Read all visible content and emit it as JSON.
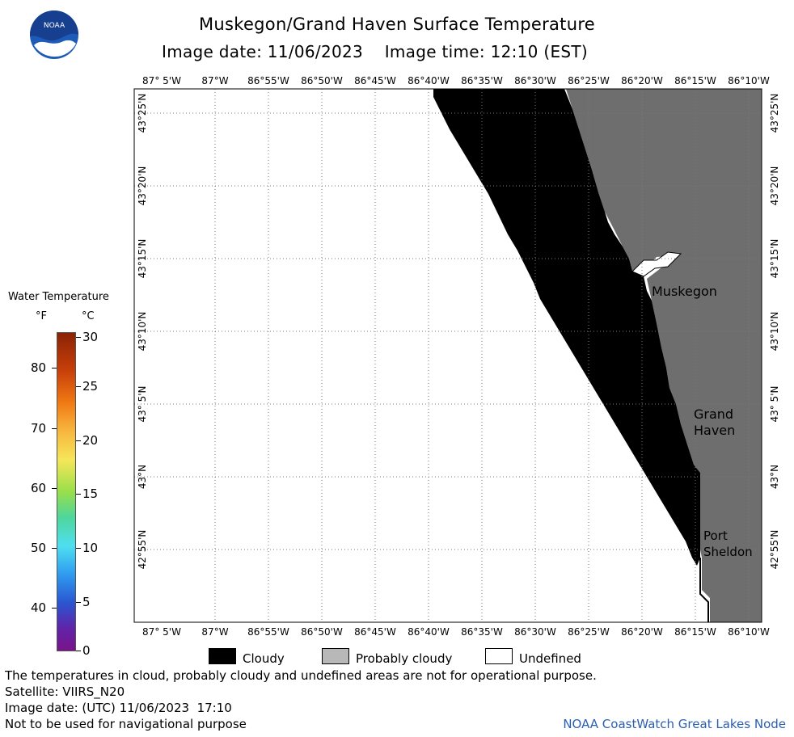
{
  "title": "Muskegon/Grand Haven Surface Temperature",
  "subtitle": "Image date: 11/06/2023    Image time: 12:10 (EST)",
  "logo_text": "NOAA",
  "axes": {
    "longitude_labels": [
      "87° 5'W",
      "87°W",
      "86°55'W",
      "86°50'W",
      "86°45'W",
      "86°40'W",
      "86°35'W",
      "86°30'W",
      "86°25'W",
      "86°20'W",
      "86°15'W",
      "86°10'W"
    ],
    "latitude_labels": [
      "43°25'N",
      "43°20'N",
      "43°15'N",
      "43°10'N",
      "43° 5'N",
      "43°N",
      "42°55'N"
    ]
  },
  "places": [
    {
      "name": "Muskegon"
    },
    {
      "name": "Grand\nHaven"
    },
    {
      "name": "Port\nSheldon"
    }
  ],
  "colorbar": {
    "title": "Water Temperature",
    "unit_f": "°F",
    "unit_c": "°C",
    "f_ticks": [
      "80",
      "70",
      "60",
      "50",
      "40"
    ],
    "c_ticks": [
      "30",
      "25",
      "20",
      "15",
      "10",
      "5",
      "0"
    ]
  },
  "legend": [
    {
      "label": "Cloudy",
      "color": "#000000"
    },
    {
      "label": "Probably cloudy",
      "color": "#b8b8b8"
    },
    {
      "label": "Undefined",
      "color": "#ffffff"
    }
  ],
  "footer": {
    "line1": "The temperatures in cloud, probably cloudy and undefined areas are not for operational purpose.",
    "line2": "Satellite: VIIRS_N20",
    "line3": "Image date: (UTC) 11/06/2023  17:10",
    "line4": "Not to be used for navigational purpose",
    "credit": "NOAA CoastWatch Great Lakes Node"
  },
  "colors": {
    "land": "#6e6e6e",
    "cloud": "#000000",
    "undefined": "#ffffff",
    "grid": "#9a9a9a"
  }
}
